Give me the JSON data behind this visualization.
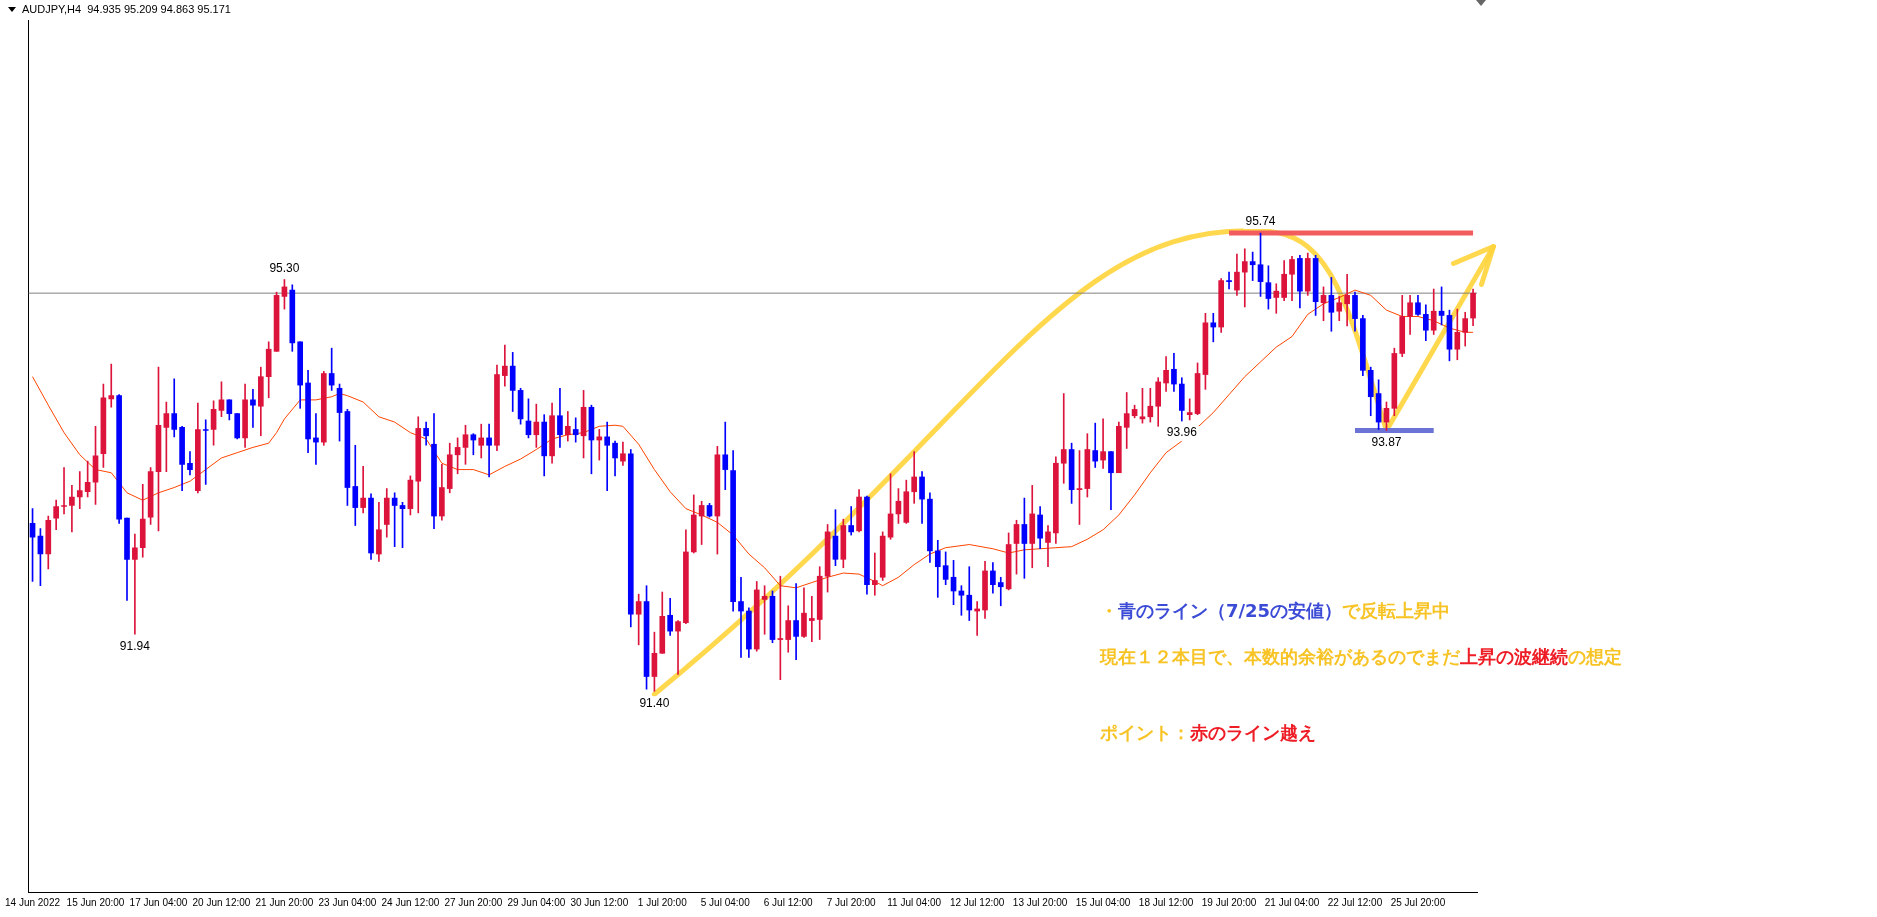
{
  "chart_data": {
    "type": "candlestick",
    "title": "AUDJPY,H4  94.935 95.209 94.863 95.171",
    "tick_labels": "x",
    "categories": [
      "14 Jun 2022",
      null,
      null,
      null,
      null,
      null,
      null,
      null,
      "15 Jun 20:00",
      null,
      null,
      null,
      null,
      null,
      null,
      null,
      "17 Jun 04:00",
      null,
      null,
      null,
      null,
      null,
      null,
      null,
      "20 Jun 12:00",
      null,
      null,
      null,
      null,
      null,
      null,
      null,
      "21 Jun 20:00",
      null,
      null,
      null,
      null,
      null,
      null,
      null,
      "23 Jun 04:00",
      null,
      null,
      null,
      null,
      null,
      null,
      null,
      "24 Jun 12:00",
      null,
      null,
      null,
      null,
      null,
      null,
      null,
      "27 Jun 20:00",
      null,
      null,
      null,
      null,
      null,
      null,
      null,
      "29 Jun 04:00",
      null,
      null,
      null,
      null,
      null,
      null,
      null,
      "30 Jun 12:00",
      null,
      null,
      null,
      null,
      null,
      null,
      null,
      "1 Jul 20:00",
      null,
      null,
      null,
      null,
      null,
      null,
      null,
      "5 Jul 04:00",
      null,
      null,
      null,
      null,
      null,
      null,
      null,
      "6 Jul 12:00",
      null,
      null,
      null,
      null,
      null,
      null,
      null,
      "7 Jul 20:00",
      null,
      null,
      null,
      null,
      null,
      null,
      null,
      "11 Jul 04:00",
      null,
      null,
      null,
      null,
      null,
      null,
      null,
      "12 Jul 12:00",
      null,
      null,
      null,
      null,
      null,
      null,
      null,
      "13 Jul 20:00",
      null,
      null,
      null,
      null,
      null,
      null,
      null,
      "15 Jul 04:00",
      null,
      null,
      null,
      null,
      null,
      null,
      null,
      "18 Jul 12:00",
      null,
      null,
      null,
      null,
      null,
      null,
      null,
      "19 Jul 20:00",
      null,
      null,
      null,
      null,
      null,
      null,
      null,
      "21 Jul 04:00",
      null,
      null,
      null,
      null,
      null,
      null,
      null,
      "22 Jul 12:00",
      null,
      null,
      null,
      null,
      null,
      null,
      null,
      "25 Jul 20:00",
      null,
      null,
      null,
      null,
      null,
      null,
      null
    ],
    "ohlc": [
      [
        92.99,
        93.13,
        92.44,
        92.86
      ],
      [
        92.87,
        92.94,
        92.4,
        92.7
      ],
      [
        92.7,
        93.06,
        92.56,
        93.02
      ],
      [
        93.04,
        93.21,
        92.93,
        93.15
      ],
      [
        93.15,
        93.52,
        93.08,
        93.16
      ],
      [
        93.16,
        93.35,
        92.91,
        93.24
      ],
      [
        93.24,
        93.48,
        93.13,
        93.3
      ],
      [
        93.29,
        93.58,
        93.24,
        93.38
      ],
      [
        93.38,
        93.91,
        93.17,
        93.63
      ],
      [
        93.65,
        94.31,
        93.52,
        94.18
      ],
      [
        94.17,
        94.5,
        94.09,
        94.2
      ],
      [
        94.2,
        94.21,
        92.99,
        93.03
      ],
      [
        93.04,
        93.04,
        92.26,
        92.65
      ],
      [
        92.65,
        92.89,
        91.94,
        92.76
      ],
      [
        92.76,
        93.36,
        92.67,
        93.03
      ],
      [
        93.05,
        93.52,
        92.98,
        93.48
      ],
      [
        93.48,
        94.47,
        92.92,
        93.92
      ],
      [
        93.9,
        94.14,
        93.48,
        94.03
      ],
      [
        94.03,
        94.36,
        93.81,
        93.88
      ],
      [
        93.9,
        93.91,
        93.3,
        93.55
      ],
      [
        93.56,
        93.67,
        93.45,
        93.5
      ],
      [
        93.3,
        94.13,
        93.28,
        93.88
      ],
      [
        93.88,
        93.97,
        93.36,
        93.87
      ],
      [
        93.88,
        94.15,
        93.73,
        94.07
      ],
      [
        94.06,
        94.33,
        94.0,
        94.16
      ],
      [
        94.16,
        94.16,
        93.97,
        94.03
      ],
      [
        94.03,
        94.03,
        93.79,
        93.8
      ],
      [
        93.8,
        94.31,
        93.71,
        94.16
      ],
      [
        94.16,
        94.26,
        93.9,
        94.11
      ],
      [
        94.1,
        94.47,
        93.82,
        94.38
      ],
      [
        94.38,
        94.71,
        94.18,
        94.64
      ],
      [
        94.62,
        95.18,
        94.62,
        95.15
      ],
      [
        95.14,
        95.3,
        95.02,
        95.23
      ],
      [
        95.2,
        95.25,
        94.62,
        94.7
      ],
      [
        94.71,
        94.71,
        94.08,
        94.3
      ],
      [
        94.32,
        94.44,
        93.66,
        93.79
      ],
      [
        93.8,
        94.03,
        93.55,
        93.76
      ],
      [
        93.76,
        94.43,
        93.73,
        94.41
      ],
      [
        94.41,
        94.65,
        94.25,
        94.3
      ],
      [
        94.27,
        94.31,
        93.77,
        94.04
      ],
      [
        94.05,
        94.07,
        93.16,
        93.33
      ],
      [
        93.34,
        93.73,
        92.97,
        93.14
      ],
      [
        93.14,
        93.53,
        93.09,
        93.23
      ],
      [
        93.23,
        93.27,
        92.65,
        92.71
      ],
      [
        92.7,
        93.19,
        92.63,
        92.93
      ],
      [
        92.98,
        93.32,
        92.86,
        93.23
      ],
      [
        93.23,
        93.28,
        92.77,
        93.16
      ],
      [
        93.16,
        93.19,
        92.76,
        93.13
      ],
      [
        93.13,
        93.44,
        93.07,
        93.4
      ],
      [
        93.39,
        94.0,
        93.09,
        93.89
      ],
      [
        93.89,
        93.95,
        93.73,
        93.82
      ],
      [
        93.74,
        94.03,
        92.94,
        93.06
      ],
      [
        93.06,
        93.55,
        93.02,
        93.33
      ],
      [
        93.32,
        93.75,
        93.28,
        93.64
      ],
      [
        93.64,
        93.8,
        93.46,
        93.71
      ],
      [
        93.71,
        93.92,
        93.55,
        93.83
      ],
      [
        93.83,
        93.84,
        93.64,
        93.78
      ],
      [
        93.73,
        93.93,
        93.61,
        93.8
      ],
      [
        93.8,
        93.93,
        93.43,
        93.73
      ],
      [
        93.73,
        94.49,
        93.68,
        94.4
      ],
      [
        94.39,
        94.68,
        94.29,
        94.48
      ],
      [
        94.48,
        94.61,
        94.05,
        94.25
      ],
      [
        94.25,
        94.27,
        93.93,
        93.98
      ],
      [
        93.96,
        94.17,
        93.8,
        93.83
      ],
      [
        93.83,
        94.12,
        93.71,
        93.95
      ],
      [
        93.95,
        94.02,
        93.44,
        93.63
      ],
      [
        93.63,
        94.13,
        93.56,
        94.01
      ],
      [
        94.01,
        94.27,
        93.71,
        93.83
      ],
      [
        93.83,
        94.05,
        93.77,
        93.91
      ],
      [
        93.88,
        93.99,
        93.76,
        93.83
      ],
      [
        93.82,
        94.25,
        93.61,
        94.09
      ],
      [
        94.09,
        94.11,
        93.46,
        93.78
      ],
      [
        93.78,
        93.88,
        93.59,
        93.81
      ],
      [
        93.81,
        93.95,
        93.3,
        93.73
      ],
      [
        93.75,
        93.77,
        93.44,
        93.61
      ],
      [
        93.58,
        93.76,
        93.54,
        93.65
      ],
      [
        93.65,
        93.69,
        92.01,
        92.13
      ],
      [
        92.13,
        92.32,
        91.84,
        92.25
      ],
      [
        92.25,
        92.4,
        91.42,
        91.54
      ],
      [
        91.54,
        91.96,
        91.4,
        91.76
      ],
      [
        91.76,
        92.34,
        91.76,
        92.11
      ],
      [
        92.12,
        92.28,
        91.93,
        91.97
      ],
      [
        91.97,
        92.07,
        91.56,
        92.06
      ],
      [
        92.05,
        92.93,
        92.04,
        92.72
      ],
      [
        92.72,
        93.26,
        92.71,
        93.07
      ],
      [
        93.06,
        93.2,
        92.79,
        93.16
      ],
      [
        93.16,
        93.18,
        93.05,
        93.06
      ],
      [
        93.06,
        93.72,
        92.7,
        93.64
      ],
      [
        93.64,
        93.95,
        93.31,
        93.5
      ],
      [
        93.49,
        93.68,
        92.16,
        92.25
      ],
      [
        92.25,
        92.48,
        91.72,
        92.16
      ],
      [
        92.16,
        92.19,
        91.72,
        91.8
      ],
      [
        91.8,
        92.44,
        91.78,
        92.36
      ],
      [
        92.27,
        92.4,
        91.94,
        92.3
      ],
      [
        92.3,
        92.35,
        91.86,
        91.89
      ],
      [
        91.89,
        92.49,
        91.51,
        91.9
      ],
      [
        91.89,
        92.21,
        91.77,
        92.07
      ],
      [
        92.07,
        92.42,
        91.7,
        91.92
      ],
      [
        91.92,
        92.38,
        91.91,
        92.14
      ],
      [
        92.07,
        92.3,
        91.87,
        92.09
      ],
      [
        92.08,
        92.58,
        91.89,
        92.49
      ],
      [
        92.49,
        92.98,
        92.34,
        92.91
      ],
      [
        92.87,
        93.12,
        92.59,
        92.65
      ],
      [
        92.65,
        93.03,
        92.57,
        92.97
      ],
      [
        92.97,
        93.15,
        92.88,
        92.91
      ],
      [
        92.92,
        93.31,
        92.91,
        93.24
      ],
      [
        93.24,
        93.25,
        92.32,
        92.41
      ],
      [
        92.41,
        92.71,
        92.31,
        92.45
      ],
      [
        92.48,
        92.91,
        92.45,
        92.87
      ],
      [
        92.86,
        93.46,
        92.84,
        93.08
      ],
      [
        93.08,
        93.32,
        92.99,
        93.2
      ],
      [
        93.0,
        93.4,
        92.99,
        93.29
      ],
      [
        93.29,
        93.67,
        93.18,
        93.43
      ],
      [
        93.43,
        93.48,
        92.99,
        93.22
      ],
      [
        93.22,
        93.28,
        92.62,
        92.73
      ],
      [
        92.73,
        92.83,
        92.29,
        92.58
      ],
      [
        92.59,
        92.72,
        92.41,
        92.46
      ],
      [
        92.48,
        92.64,
        92.22,
        92.35
      ],
      [
        92.35,
        92.4,
        92.12,
        92.31
      ],
      [
        92.31,
        92.58,
        92.07,
        92.17
      ],
      [
        92.16,
        92.25,
        91.93,
        92.18
      ],
      [
        92.17,
        92.63,
        92.09,
        92.54
      ],
      [
        92.54,
        92.62,
        92.33,
        92.41
      ],
      [
        92.43,
        92.48,
        92.21,
        92.39
      ],
      [
        92.37,
        92.9,
        92.36,
        92.79
      ],
      [
        92.8,
        93.02,
        92.51,
        92.98
      ],
      [
        92.98,
        93.23,
        92.47,
        92.8
      ],
      [
        92.8,
        93.35,
        92.57,
        93.08
      ],
      [
        93.07,
        93.15,
        92.75,
        92.85
      ],
      [
        92.81,
        92.97,
        92.58,
        92.91
      ],
      [
        92.9,
        93.62,
        92.8,
        93.56
      ],
      [
        93.56,
        94.22,
        93.37,
        93.69
      ],
      [
        93.69,
        93.75,
        93.18,
        93.31
      ],
      [
        93.31,
        93.68,
        92.98,
        93.32
      ],
      [
        93.32,
        93.84,
        93.24,
        93.69
      ],
      [
        93.68,
        93.94,
        93.52,
        93.58
      ],
      [
        93.59,
        93.98,
        93.51,
        93.67
      ],
      [
        93.67,
        93.67,
        93.12,
        93.47
      ],
      [
        93.47,
        93.95,
        93.47,
        93.91
      ],
      [
        93.9,
        94.23,
        93.7,
        94.03
      ],
      [
        94.01,
        94.11,
        93.99,
        94.07
      ],
      [
        93.98,
        94.27,
        93.94,
        94.0
      ],
      [
        94.0,
        94.27,
        93.95,
        94.1
      ],
      [
        94.1,
        94.37,
        93.91,
        94.33
      ],
      [
        94.32,
        94.57,
        94.24,
        94.44
      ],
      [
        94.45,
        94.6,
        94.24,
        94.31
      ],
      [
        94.31,
        94.37,
        93.96,
        94.06
      ],
      [
        94.02,
        94.17,
        93.97,
        94.04
      ],
      [
        94.03,
        94.51,
        94.02,
        94.41
      ],
      [
        94.4,
        94.98,
        94.26,
        94.89
      ],
      [
        94.89,
        94.98,
        94.71,
        94.85
      ],
      [
        94.85,
        95.31,
        94.8,
        95.29
      ],
      [
        95.29,
        95.37,
        95.21,
        95.28
      ],
      [
        95.2,
        95.54,
        95.15,
        95.37
      ],
      [
        95.37,
        95.59,
        95.04,
        95.47
      ],
      [
        95.47,
        95.56,
        95.29,
        95.44
      ],
      [
        95.44,
        95.74,
        95.14,
        95.28
      ],
      [
        95.27,
        95.43,
        95.02,
        95.12
      ],
      [
        95.13,
        95.26,
        94.98,
        95.19
      ],
      [
        95.13,
        95.48,
        95.1,
        95.35
      ],
      [
        95.35,
        95.52,
        95.1,
        95.49
      ],
      [
        95.5,
        95.53,
        95.03,
        95.19
      ],
      [
        95.19,
        95.55,
        95.15,
        95.5
      ],
      [
        95.5,
        95.53,
        94.96,
        95.09
      ],
      [
        95.08,
        95.23,
        94.91,
        95.15
      ],
      [
        95.15,
        95.32,
        94.81,
        94.99
      ],
      [
        95.0,
        95.14,
        94.91,
        95.08
      ],
      [
        95.07,
        95.35,
        94.86,
        95.15
      ],
      [
        95.15,
        95.18,
        94.81,
        94.93
      ],
      [
        94.93,
        94.96,
        94.39,
        94.44
      ],
      [
        94.44,
        94.47,
        94.01,
        94.19
      ],
      [
        94.22,
        94.35,
        93.88,
        93.95
      ],
      [
        93.95,
        94.14,
        93.87,
        94.08
      ],
      [
        94.08,
        94.65,
        94.01,
        94.6
      ],
      [
        94.6,
        95.15,
        94.57,
        94.95
      ],
      [
        94.95,
        95.15,
        94.78,
        95.08
      ],
      [
        95.08,
        95.15,
        94.96,
        94.97
      ],
      [
        94.97,
        95.06,
        94.72,
        94.82
      ],
      [
        94.82,
        95.21,
        94.78,
        95.0
      ],
      [
        95.0,
        95.23,
        94.87,
        94.96
      ],
      [
        94.96,
        95.01,
        94.53,
        94.64
      ],
      [
        94.64,
        95.02,
        94.54,
        94.8
      ],
      [
        94.8,
        94.99,
        94.67,
        94.93
      ],
      [
        94.935,
        95.209,
        94.863,
        95.171
      ]
    ],
    "colors": [
      "#0000ff",
      "#0000ff",
      "#dc143c",
      "#dc143c",
      "#dc143c",
      "#dc143c",
      "#dc143c",
      "#dc143c",
      "#dc143c",
      "#dc143c",
      "#dc143c",
      "#0000ff",
      "#0000ff",
      "#dc143c",
      "#dc143c",
      "#dc143c",
      "#dc143c",
      "#dc143c",
      "#0000ff",
      "#0000ff",
      "#0000ff",
      "#dc143c",
      "#0000ff",
      "#dc143c",
      "#dc143c",
      "#0000ff",
      "#0000ff",
      "#dc143c",
      "#0000ff",
      "#dc143c",
      "#dc143c",
      "#dc143c",
      "#dc143c",
      "#0000ff",
      "#0000ff",
      "#0000ff",
      "#0000ff",
      "#dc143c",
      "#0000ff",
      "#0000ff",
      "#0000ff",
      "#0000ff",
      "#dc143c",
      "#0000ff",
      "#dc143c",
      "#dc143c",
      "#0000ff",
      "#0000ff",
      "#dc143c",
      "#dc143c",
      "#0000ff",
      "#0000ff",
      "#dc143c",
      "#dc143c",
      "#dc143c",
      "#dc143c",
      "#0000ff",
      "#dc143c",
      "#0000ff",
      "#dc143c",
      "#dc143c",
      "#0000ff",
      "#0000ff",
      "#0000ff",
      "#dc143c",
      "#0000ff",
      "#dc143c",
      "#0000ff",
      "#dc143c",
      "#0000ff",
      "#dc143c",
      "#0000ff",
      "#dc143c",
      "#0000ff",
      "#0000ff",
      "#dc143c",
      "#0000ff",
      "#dc143c",
      "#0000ff",
      "#dc143c",
      "#dc143c",
      "#0000ff",
      "#dc143c",
      "#dc143c",
      "#dc143c",
      "#dc143c",
      "#0000ff",
      "#dc143c",
      "#0000ff",
      "#0000ff",
      "#0000ff",
      "#0000ff",
      "#dc143c",
      "#dc143c",
      "#0000ff",
      "#dc143c",
      "#dc143c",
      "#0000ff",
      "#dc143c",
      "#dc143c",
      "#dc143c",
      "#dc143c",
      "#0000ff",
      "#dc143c",
      "#0000ff",
      "#dc143c",
      "#0000ff",
      "#dc143c",
      "#dc143c",
      "#dc143c",
      "#dc143c",
      "#dc143c",
      "#dc143c",
      "#0000ff",
      "#0000ff",
      "#0000ff",
      "#0000ff",
      "#0000ff",
      "#0000ff",
      "#0000ff",
      "#dc143c",
      "#dc143c",
      "#0000ff",
      "#0000ff",
      "#dc143c",
      "#dc143c",
      "#0000ff",
      "#dc143c",
      "#0000ff",
      "#dc143c",
      "#dc143c",
      "#dc143c",
      "#0000ff",
      "#dc143c",
      "#dc143c",
      "#0000ff",
      "#dc143c",
      "#0000ff",
      "#dc143c",
      "#dc143c",
      "#dc143c",
      "#dc143c",
      "#dc143c",
      "#dc143c",
      "#dc143c",
      "#0000ff",
      "#0000ff",
      "#dc143c",
      "#dc143c",
      "#dc143c",
      "#0000ff",
      "#dc143c",
      "#0000ff",
      "#dc143c",
      "#dc143c",
      "#0000ff",
      "#0000ff",
      "#0000ff",
      "#dc143c",
      "#dc143c",
      "#dc143c",
      "#0000ff",
      "#dc143c",
      "#0000ff",
      "#dc143c",
      "#0000ff",
      "#dc143c",
      "#dc143c",
      "#0000ff",
      "#0000ff",
      "#0000ff",
      "#0000ff",
      "#dc143c",
      "#dc143c",
      "#dc143c",
      "#dc143c",
      "#0000ff",
      "#0000ff",
      "#dc143c",
      "#0000ff",
      "#0000ff",
      "#dc143c",
      "#dc143c",
      "#dc143c"
    ],
    "series": [
      {
        "type": "line",
        "color": "#ff4500",
        "values": [
          94.38,
          null,
          94.11,
          null,
          93.85,
          null,
          93.64,
          null,
          93.5,
          null,
          93.47,
          null,
          93.28,
          null,
          93.21,
          null,
          93.28,
          null,
          93.33,
          null,
          93.39,
          null,
          93.5,
          null,
          93.61,
          null,
          93.66,
          null,
          93.71,
          null,
          93.75,
          93.85,
          93.98,
          null,
          94.16,
          null,
          94.16,
          null,
          94.19,
          94.22,
          94.2,
          null,
          94.14,
          null,
          94.0,
          null,
          93.95,
          null,
          93.85,
          null,
          93.79,
          null,
          93.56,
          null,
          93.5,
          null,
          93.5,
          null,
          93.45,
          null,
          93.53,
          null,
          93.6,
          null,
          93.69,
          null,
          93.79,
          null,
          93.83,
          null,
          93.85,
          null,
          93.91,
          null,
          93.92,
          93.91,
          null,
          93.74,
          null,
          93.5,
          null,
          93.29,
          null,
          93.13,
          null,
          93.07,
          null,
          93.0,
          null,
          92.88,
          null,
          92.7,
          null,
          92.57,
          null,
          92.4,
          null,
          92.38,
          null,
          92.43,
          null,
          92.48,
          null,
          92.52,
          null,
          92.51,
          null,
          92.44,
          92.4,
          null,
          92.48,
          null,
          92.6,
          null,
          92.7,
          null,
          92.76,
          null,
          null,
          92.79,
          null,
          null,
          92.75,
          null,
          92.71,
          null,
          92.74,
          null,
          92.75,
          null,
          92.76,
          null,
          92.77,
          null,
          92.84,
          null,
          92.93,
          null,
          93.07,
          null,
          93.26,
          null,
          93.47,
          null,
          93.66,
          null,
          93.77,
          null,
          93.9,
          null,
          94.04,
          null,
          94.21,
          null,
          94.38,
          null,
          94.52,
          null,
          94.66,
          null,
          94.76,
          null,
          94.97,
          null,
          95.07,
          null,
          95.13,
          null,
          95.2,
          null,
          95.15,
          null,
          95.01,
          null,
          94.95,
          null,
          94.95,
          null,
          94.91,
          null,
          94.84,
          null,
          94.8,
          94.8
        ]
      },
      {
        "type": "line",
        "color": "#f25c5c",
        "values": [
          null,
          null,
          null,
          null,
          null,
          null,
          null,
          null,
          null,
          null,
          null,
          null,
          null,
          null,
          null,
          null,
          null,
          null,
          null,
          null,
          null,
          null,
          null,
          null,
          null,
          null,
          null,
          null,
          null,
          null,
          null,
          null,
          null,
          null,
          null,
          null,
          null,
          null,
          null,
          null,
          null,
          null,
          null,
          null,
          null,
          null,
          null,
          null,
          null,
          null,
          null,
          null,
          null,
          null,
          null,
          null,
          null,
          null,
          null,
          null,
          null,
          null,
          null,
          null,
          null,
          null,
          null,
          null,
          null,
          null,
          null,
          null,
          null,
          null,
          null,
          null,
          null,
          null,
          null,
          null,
          null,
          null,
          null,
          null,
          null,
          null,
          null,
          null,
          null,
          null,
          null,
          null,
          null,
          null,
          null,
          null,
          null,
          null,
          null,
          null,
          null,
          null,
          null,
          null,
          null,
          null,
          null,
          null,
          null,
          null,
          null,
          null,
          null,
          null,
          null,
          null,
          null,
          null,
          null,
          null,
          null,
          null,
          null,
          null,
          null,
          null,
          null,
          null,
          null,
          null,
          null,
          null,
          null,
          null,
          null,
          null,
          null,
          null,
          null,
          null,
          null,
          null,
          null,
          null,
          null,
          null,
          null,
          null,
          null,
          null,
          null,
          null,
          95.74,
          null,
          null,
          null,
          null,
          null,
          null,
          null,
          null,
          null,
          null,
          null,
          null,
          null,
          null,
          null,
          null,
          null,
          null,
          null,
          null,
          null,
          null,
          null,
          null,
          null,
          null,
          null,
          null,
          null,
          null,
          95.74
        ]
      },
      {
        "type": "line",
        "color": "#6b73d6",
        "values": [
          null,
          null,
          null,
          null,
          null,
          null,
          null,
          null,
          null,
          null,
          null,
          null,
          null,
          null,
          null,
          null,
          null,
          null,
          null,
          null,
          null,
          null,
          null,
          null,
          null,
          null,
          null,
          null,
          null,
          null,
          null,
          null,
          null,
          null,
          null,
          null,
          null,
          null,
          null,
          null,
          null,
          null,
          null,
          null,
          null,
          null,
          null,
          null,
          null,
          null,
          null,
          null,
          null,
          null,
          null,
          null,
          null,
          null,
          null,
          null,
          null,
          null,
          null,
          null,
          null,
          null,
          null,
          null,
          null,
          null,
          null,
          null,
          null,
          null,
          null,
          null,
          null,
          null,
          null,
          null,
          null,
          null,
          null,
          null,
          null,
          null,
          null,
          null,
          null,
          null,
          null,
          null,
          null,
          null,
          null,
          null,
          null,
          null,
          null,
          null,
          null,
          null,
          null,
          null,
          null,
          null,
          null,
          null,
          null,
          null,
          null,
          null,
          null,
          null,
          null,
          null,
          null,
          null,
          null,
          null,
          null,
          null,
          null,
          null,
          null,
          null,
          null,
          null,
          null,
          null,
          null,
          null,
          null,
          null,
          null,
          null,
          null,
          null,
          null,
          null,
          null,
          null,
          null,
          null,
          null,
          null,
          null,
          null,
          null,
          null,
          null,
          null,
          null,
          null,
          null,
          null,
          null,
          null,
          null,
          null,
          null,
          null,
          null,
          null,
          null,
          null,
          null,
          null,
          93.87,
          null,
          null,
          null,
          null,
          null,
          null,
          null,
          null,
          null,
          93.87,
          null,
          null,
          null,
          null,
          null
        ]
      }
    ],
    "ref_lines": [
      {
        "axis": "y",
        "value": 95.171,
        "color": "#808080"
      }
    ],
    "annotations": [
      {
        "text": "95.30",
        "y": 95.3
      },
      {
        "text": "91.94",
        "y": 91.94
      },
      {
        "text": "91.40",
        "y": 91.4
      },
      {
        "text": "95.74",
        "y": 95.74
      },
      {
        "text": "93.96",
        "y": 93.96
      },
      {
        "text": "93.87",
        "y": 93.87
      },
      "・",
      "青のライン（7/25の安値）",
      "で反転上昇中",
      "現在１２本目で、本数的余裕があるのでまだ",
      "上昇の波継続",
      "の想定",
      "ポイント：",
      "赤のライン越え"
    ]
  }
}
